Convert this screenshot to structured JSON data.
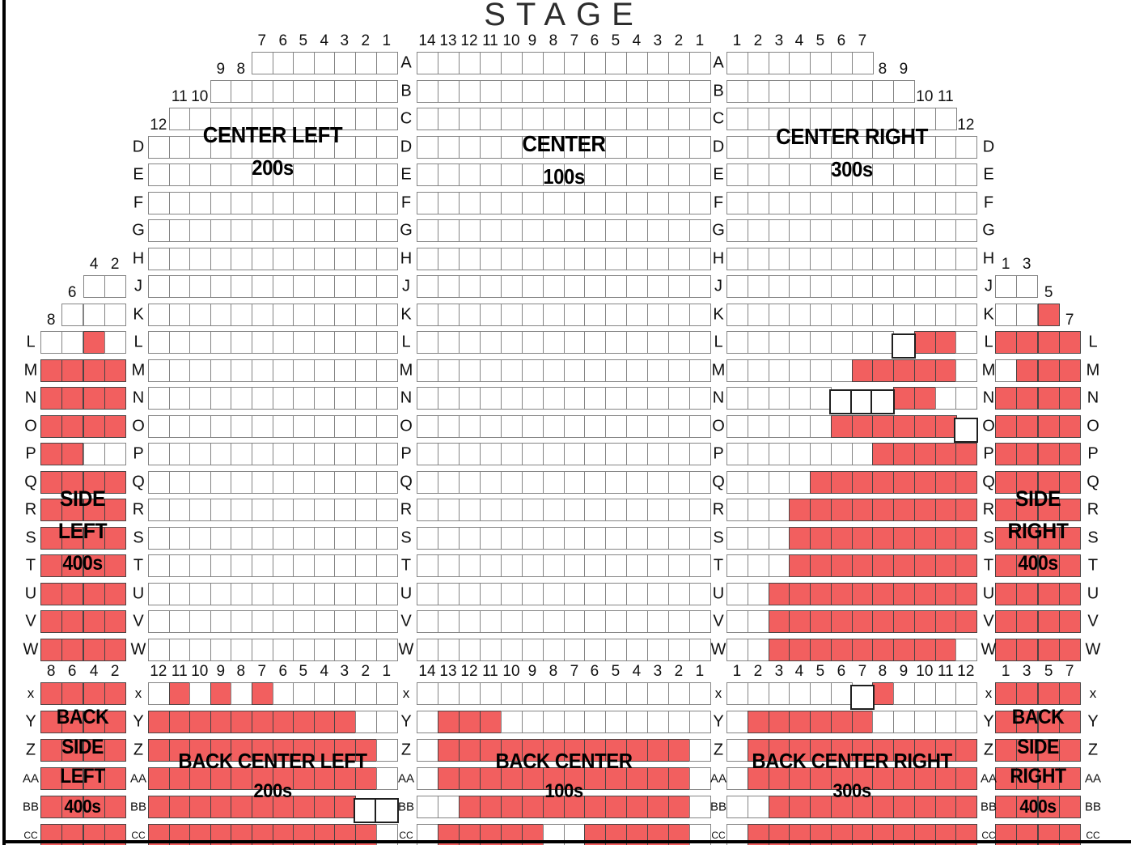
{
  "stage_label": "STAGE",
  "colors": {
    "seat_available": "#FFFFFF",
    "seat_sold": "#F25F5F",
    "seat_border_available": "#848484",
    "seat_border_sold": "#4A4444",
    "border_line": "#000000"
  },
  "label_columns": [
    {
      "id": "col1",
      "top": [
        "L",
        "M",
        "N",
        "O",
        "P",
        "Q",
        "R",
        "S",
        "T",
        "U",
        "V",
        "W"
      ],
      "bottom": [
        "x",
        "Y",
        "Z",
        "AA",
        "BB",
        "CC"
      ]
    },
    {
      "id": "col2",
      "top": [
        "D",
        "E",
        "F",
        "G",
        "H",
        "J",
        "K",
        "L",
        "M",
        "N",
        "O",
        "P",
        "Q",
        "R",
        "S",
        "T",
        "U",
        "V",
        "W"
      ],
      "bottom": [
        "x",
        "Y",
        "Z",
        "AA",
        "BB",
        "CC"
      ]
    },
    {
      "id": "col3",
      "top": [
        "A",
        "B",
        "C",
        "D",
        "E",
        "F",
        "G",
        "H",
        "J",
        "K",
        "L",
        "M",
        "N",
        "O",
        "P",
        "Q",
        "R",
        "S",
        "T",
        "U",
        "V",
        "W"
      ],
      "bottom": [
        "x",
        "Y",
        "Z",
        "AA",
        "BB",
        "CC"
      ]
    },
    {
      "id": "col4",
      "top": [
        "A",
        "B",
        "C",
        "D",
        "E",
        "F",
        "G",
        "H",
        "J",
        "K",
        "L",
        "M",
        "N",
        "O",
        "P",
        "Q",
        "R",
        "S",
        "T",
        "U",
        "V",
        "W"
      ],
      "bottom": [
        "x",
        "Y",
        "Z",
        "AA",
        "BB",
        "CC"
      ]
    },
    {
      "id": "col5",
      "top": [
        "D",
        "E",
        "F",
        "G",
        "H",
        "J",
        "K",
        "L",
        "M",
        "N",
        "O",
        "P",
        "Q",
        "R",
        "S",
        "T",
        "U",
        "V",
        "W"
      ],
      "bottom": [
        "x",
        "Y",
        "Z",
        "AA",
        "BB",
        "CC"
      ]
    },
    {
      "id": "col6",
      "top": [
        "L",
        "M",
        "N",
        "O",
        "P",
        "Q",
        "R",
        "S",
        "T",
        "U",
        "V",
        "W"
      ],
      "bottom": [
        "x",
        "Y",
        "Z",
        "AA",
        "BB",
        "CC"
      ]
    }
  ],
  "sections": [
    {
      "id": "side-left",
      "band": "top",
      "cols": 4,
      "col_numbers": [
        8,
        6,
        4,
        2
      ],
      "label_lines": [
        "SIDE",
        "LEFT",
        "400s"
      ],
      "rows": [
        {
          "r": "J",
          "start": 2,
          "seats": "ww",
          "nums": [
            "4",
            "2"
          ]
        },
        {
          "r": "K",
          "start": 1,
          "seats": "www",
          "nums": [
            "6",
            "",
            ""
          ]
        },
        {
          "r": "L",
          "start": 0,
          "seats": "wwrw",
          "nums": [
            "8",
            "",
            "",
            ""
          ]
        },
        {
          "r": "M",
          "start": 0,
          "seats": "rrrr"
        },
        {
          "r": "N",
          "start": 0,
          "seats": "rrrr"
        },
        {
          "r": "O",
          "start": 0,
          "seats": "rrrr"
        },
        {
          "r": "P",
          "start": 0,
          "seats": "rrww"
        },
        {
          "r": "Q",
          "start": 0,
          "seats": "rrrr"
        },
        {
          "r": "R",
          "start": 0,
          "seats": "rrrr"
        },
        {
          "r": "S",
          "start": 0,
          "seats": "rrrr"
        },
        {
          "r": "T",
          "start": 0,
          "seats": "rrrr"
        },
        {
          "r": "U",
          "start": 0,
          "seats": "rrrr"
        },
        {
          "r": "V",
          "start": 0,
          "seats": "rrrr"
        },
        {
          "r": "W",
          "start": 0,
          "seats": "rrrr"
        }
      ]
    },
    {
      "id": "center-left",
      "band": "top",
      "cols": 12,
      "numbering": "desc",
      "label_lines": [
        "CENTER LEFT",
        "200s"
      ],
      "rows": [
        {
          "r": "A",
          "start": 5,
          "seats": "wwwwwww",
          "nums": [
            "7",
            "6",
            "5",
            "4",
            "3",
            "2",
            "1"
          ]
        },
        {
          "r": "B",
          "start": 3,
          "seats": "wwwwwwwww",
          "nums": [
            "9",
            "8",
            "",
            "",
            "",
            "",
            "",
            "",
            ""
          ]
        },
        {
          "r": "C",
          "start": 1,
          "seats": "wwwwwwwwwww",
          "nums": [
            "11",
            "10",
            "",
            "",
            "",
            "",
            "",
            "",
            "",
            "",
            ""
          ]
        },
        {
          "r": "D",
          "start": 0,
          "seats": "wwwwwwwwwwww",
          "nums": [
            "12",
            "",
            "",
            "",
            "",
            "",
            "",
            "",
            "",
            "",
            "",
            ""
          ]
        },
        {
          "r": "E",
          "start": 0,
          "seats": "wwwwwwwwwwww"
        },
        {
          "r": "F",
          "start": 0,
          "seats": "wwwwwwwwwwww"
        },
        {
          "r": "G",
          "start": 0,
          "seats": "wwwwwwwwwwww"
        },
        {
          "r": "H",
          "start": 0,
          "seats": "wwwwwwwwwwww"
        },
        {
          "r": "J",
          "start": 0,
          "seats": "wwwwwwwwwwww"
        },
        {
          "r": "K",
          "start": 0,
          "seats": "wwwwwwwwwwww"
        },
        {
          "r": "L",
          "start": 0,
          "seats": "wwwwwwwwwwww"
        },
        {
          "r": "M",
          "start": 0,
          "seats": "wwwwwwwwwwww"
        },
        {
          "r": "N",
          "start": 0,
          "seats": "wwwwwwwwwwww"
        },
        {
          "r": "O",
          "start": 0,
          "seats": "wwwwwwwwwwww"
        },
        {
          "r": "P",
          "start": 0,
          "seats": "wwwwwwwwwwww"
        },
        {
          "r": "Q",
          "start": 0,
          "seats": "wwwwwwwwwwww"
        },
        {
          "r": "R",
          "start": 0,
          "seats": "wwwwwwwwwwww"
        },
        {
          "r": "S",
          "start": 0,
          "seats": "wwwwwwwwwwww"
        },
        {
          "r": "T",
          "start": 0,
          "seats": "wwwwwwwwwwww"
        },
        {
          "r": "U",
          "start": 0,
          "seats": "wwwwwwwwwwww"
        },
        {
          "r": "V",
          "start": 0,
          "seats": "wwwwwwwwwwww"
        },
        {
          "r": "W",
          "start": 0,
          "seats": "wwwwwwwwwwww"
        }
      ]
    },
    {
      "id": "center",
      "band": "top",
      "cols": 14,
      "numbering": "desc",
      "label_lines": [
        "CENTER",
        "100s"
      ],
      "rows": [
        {
          "r": "A",
          "start": 0,
          "seats": "wwwwwwwwwwwwww",
          "nums": [
            "14",
            "13",
            "12",
            "11",
            "10",
            "9",
            "8",
            "7",
            "6",
            "5",
            "4",
            "3",
            "2",
            "1"
          ]
        },
        {
          "r": "B",
          "start": 0,
          "seats": "wwwwwwwwwwwwww"
        },
        {
          "r": "C",
          "start": 0,
          "seats": "wwwwwwwwwwwwww"
        },
        {
          "r": "D",
          "start": 0,
          "seats": "wwwwwwwwwwwwww"
        },
        {
          "r": "E",
          "start": 0,
          "seats": "wwwwwwwwwwwwww"
        },
        {
          "r": "F",
          "start": 0,
          "seats": "wwwwwwwwwwwwww"
        },
        {
          "r": "G",
          "start": 0,
          "seats": "wwwwwwwwwwwwww"
        },
        {
          "r": "H",
          "start": 0,
          "seats": "wwwwwwwwwwwwww"
        },
        {
          "r": "J",
          "start": 0,
          "seats": "wwwwwwwwwwwwww"
        },
        {
          "r": "K",
          "start": 0,
          "seats": "wwwwwwwwwwwwww"
        },
        {
          "r": "L",
          "start": 0,
          "seats": "wwwwwwwwwwwwww"
        },
        {
          "r": "M",
          "start": 0,
          "seats": "wwwwwwwwwwwwww"
        },
        {
          "r": "N",
          "start": 0,
          "seats": "wwwwwwwwwwwwww"
        },
        {
          "r": "O",
          "start": 0,
          "seats": "wwwwwwwwwwwwww"
        },
        {
          "r": "P",
          "start": 0,
          "seats": "wwwwwwwwwwwwww"
        },
        {
          "r": "Q",
          "start": 0,
          "seats": "wwwwwwwwwwwwww"
        },
        {
          "r": "R",
          "start": 0,
          "seats": "wwwwwwwwwwwwww"
        },
        {
          "r": "S",
          "start": 0,
          "seats": "wwwwwwwwwwwwww"
        },
        {
          "r": "T",
          "start": 0,
          "seats": "wwwwwwwwwwwwww"
        },
        {
          "r": "U",
          "start": 0,
          "seats": "wwwwwwwwwwwwww"
        },
        {
          "r": "V",
          "start": 0,
          "seats": "wwwwwwwwwwwwww"
        },
        {
          "r": "W",
          "start": 0,
          "seats": "wwwwwwwwwwwwww"
        }
      ]
    },
    {
      "id": "center-right",
      "band": "top",
      "cols": 12,
      "numbering": "asc",
      "label_lines": [
        "CENTER RIGHT",
        "300s"
      ],
      "rows": [
        {
          "r": "A",
          "start": 0,
          "seats": "wwwwwww",
          "nums": [
            "1",
            "2",
            "3",
            "4",
            "5",
            "6",
            "7"
          ]
        },
        {
          "r": "B",
          "start": 0,
          "seats": "wwwwwwwww",
          "nums": [
            "",
            "",
            "",
            "",
            "",
            "",
            "",
            "8",
            "9"
          ]
        },
        {
          "r": "C",
          "start": 0,
          "seats": "wwwwwwwwwww",
          "nums": [
            "",
            "",
            "",
            "",
            "",
            "",
            "",
            "",
            "",
            "10",
            "11"
          ]
        },
        {
          "r": "D",
          "start": 0,
          "seats": "wwwwwwwwwwww",
          "nums": [
            "",
            "",
            "",
            "",
            "",
            "",
            "",
            "",
            "",
            "",
            "",
            "12"
          ]
        },
        {
          "r": "E",
          "start": 0,
          "seats": "wwwwwwwwwwww"
        },
        {
          "r": "F",
          "start": 0,
          "seats": "wwwwwwwwwwww"
        },
        {
          "r": "G",
          "start": 0,
          "seats": "wwwwwwwwwwww"
        },
        {
          "r": "H",
          "start": 0,
          "seats": "wwwwwwwwwwww"
        },
        {
          "r": "J",
          "start": 0,
          "seats": "wwwwwwwwwwww"
        },
        {
          "r": "K",
          "start": 0,
          "seats": "wwwwwwwwwwww"
        },
        {
          "r": "L",
          "start": 0,
          "seats": "wwwwwwwworrw"
        },
        {
          "r": "M",
          "start": 0,
          "seats": "wwwwwwrrrrrw"
        },
        {
          "r": "N",
          "start": 0,
          "seats": "wwwwwooorrww"
        },
        {
          "r": "O",
          "start": 0,
          "seats": "wwwwwrrrrrro"
        },
        {
          "r": "P",
          "start": 0,
          "seats": "wwwwwwwrrrrr"
        },
        {
          "r": "Q",
          "start": 0,
          "seats": "wwwwrrrrrrrr"
        },
        {
          "r": "R",
          "start": 0,
          "seats": "wwwrrrrrrrrr"
        },
        {
          "r": "S",
          "start": 0,
          "seats": "wwwrrrrrrrrr"
        },
        {
          "r": "T",
          "start": 0,
          "seats": "wwwrrrrrrrrr"
        },
        {
          "r": "U",
          "start": 0,
          "seats": "wwrrrrrrrrrr"
        },
        {
          "r": "V",
          "start": 0,
          "seats": "wwrrrrrrrrrr"
        },
        {
          "r": "W",
          "start": 0,
          "seats": "wwrrrrrrrrrw"
        }
      ]
    },
    {
      "id": "side-right",
      "band": "top",
      "cols": 4,
      "col_numbers": [
        1,
        3,
        5,
        7
      ],
      "label_lines": [
        "SIDE",
        "RIGHT",
        "400s"
      ],
      "rows": [
        {
          "r": "J",
          "start": 0,
          "seats": "ww",
          "nums": [
            "1",
            "3"
          ]
        },
        {
          "r": "K",
          "start": 0,
          "seats": "wwr",
          "nums": [
            "",
            "",
            "5"
          ]
        },
        {
          "r": "L",
          "start": 0,
          "seats": "rrrr",
          "nums": [
            "",
            "",
            "",
            "7"
          ]
        },
        {
          "r": "M",
          "start": 0,
          "seats": "wrrr"
        },
        {
          "r": "N",
          "start": 0,
          "seats": "rrrr"
        },
        {
          "r": "O",
          "start": 0,
          "seats": "rrrr"
        },
        {
          "r": "P",
          "start": 0,
          "seats": "rrrr"
        },
        {
          "r": "Q",
          "start": 0,
          "seats": "rrrr"
        },
        {
          "r": "R",
          "start": 0,
          "seats": "rrrr"
        },
        {
          "r": "S",
          "start": 0,
          "seats": "rrrr"
        },
        {
          "r": "T",
          "start": 0,
          "seats": "rrrr"
        },
        {
          "r": "U",
          "start": 0,
          "seats": "rrrr"
        },
        {
          "r": "V",
          "start": 0,
          "seats": "rrrr"
        },
        {
          "r": "W",
          "start": 0,
          "seats": "rrrr"
        }
      ]
    },
    {
      "id": "back-side-left",
      "band": "bottom",
      "cols": 4,
      "col_numbers": [
        8,
        6,
        4,
        2
      ],
      "label_lines": [
        "BACK",
        "SIDE",
        "LEFT",
        "400s"
      ],
      "rows": [
        {
          "r": "X",
          "start": 0,
          "seats": "rrrr",
          "nums": [
            "8",
            "6",
            "4",
            "2"
          ]
        },
        {
          "r": "Y",
          "start": 0,
          "seats": "rrrr"
        },
        {
          "r": "Z",
          "start": 0,
          "seats": "rrrr"
        },
        {
          "r": "AA",
          "start": 0,
          "seats": "rrrr"
        },
        {
          "r": "BB",
          "start": 0,
          "seats": "rrrr"
        },
        {
          "r": "CC",
          "start": 0,
          "seats": "rrrr"
        }
      ]
    },
    {
      "id": "back-center-left",
      "band": "bottom",
      "cols": 12,
      "numbering": "desc",
      "label_lines": [
        "BACK CENTER LEFT",
        "200s"
      ],
      "rows": [
        {
          "r": "X",
          "start": 0,
          "seats": "wrwrwrwwwwww",
          "nums": [
            "12",
            "11",
            "10",
            "9",
            "8",
            "7",
            "6",
            "5",
            "4",
            "3",
            "2",
            "1"
          ]
        },
        {
          "r": "Y",
          "start": 0,
          "seats": "rrrrrrrrrrww"
        },
        {
          "r": "Z",
          "start": 0,
          "seats": "rrrrrrrrrrrw"
        },
        {
          "r": "AA",
          "start": 0,
          "seats": "rrrrrrrrrrrw"
        },
        {
          "r": "BB",
          "start": 0,
          "seats": "rrrrrrrrrroo"
        },
        {
          "r": "CC",
          "start": 0,
          "seats": "rrrrrrrrrrrw"
        }
      ]
    },
    {
      "id": "back-center",
      "band": "bottom",
      "cols": 14,
      "numbering": "desc",
      "label_lines": [
        "BACK CENTER",
        "100s"
      ],
      "rows": [
        {
          "r": "X",
          "start": 0,
          "seats": "wwwwwwwwwwwwww",
          "nums": [
            "14",
            "13",
            "12",
            "11",
            "10",
            "9",
            "8",
            "7",
            "6",
            "5",
            "4",
            "3",
            "2",
            "1"
          ]
        },
        {
          "r": "Y",
          "start": 0,
          "seats": "wrrrwwwwwwwwww"
        },
        {
          "r": "Z",
          "start": 0,
          "seats": "wrrrrrrrrrrrrw"
        },
        {
          "r": "AA",
          "start": 0,
          "seats": "wrrrrrrrrrrrrw"
        },
        {
          "r": "BB",
          "start": 0,
          "seats": "wwrrrrrrrrrrrw"
        },
        {
          "r": "CC",
          "start": 0,
          "seats": "wrrrrrwwrrrrrw"
        }
      ]
    },
    {
      "id": "back-center-right",
      "band": "bottom",
      "cols": 12,
      "numbering": "asc",
      "label_lines": [
        "BACK CENTER RIGHT",
        "300s"
      ],
      "rows": [
        {
          "r": "X",
          "start": 0,
          "seats": "wwwwwworwwww",
          "nums": [
            "1",
            "2",
            "3",
            "4",
            "5",
            "6",
            "7",
            "8",
            "9",
            "10",
            "11",
            "12"
          ]
        },
        {
          "r": "Y",
          "start": 0,
          "seats": "wrrrrrrwwwww"
        },
        {
          "r": "Z",
          "start": 0,
          "seats": "wrrrrrrrrrrr"
        },
        {
          "r": "AA",
          "start": 0,
          "seats": "wrrrrrrrrrrr"
        },
        {
          "r": "BB",
          "start": 0,
          "seats": "wwrrrrrrrrrr"
        },
        {
          "r": "CC",
          "start": 0,
          "seats": "wrrrrrrrrrrr"
        }
      ]
    },
    {
      "id": "back-side-right",
      "band": "bottom",
      "cols": 4,
      "col_numbers": [
        1,
        3,
        5,
        7
      ],
      "label_lines": [
        "BACK",
        "SIDE",
        "RIGHT",
        "400s"
      ],
      "rows": [
        {
          "r": "X",
          "start": 0,
          "seats": "rrrr",
          "nums": [
            "1",
            "3",
            "5",
            "7"
          ]
        },
        {
          "r": "Y",
          "start": 0,
          "seats": "rrrr"
        },
        {
          "r": "Z",
          "start": 0,
          "seats": "rrrr"
        },
        {
          "r": "AA",
          "start": 0,
          "seats": "rrrr"
        },
        {
          "r": "BB",
          "start": 0,
          "seats": "rrrr"
        },
        {
          "r": "CC",
          "start": 0,
          "seats": "rrrr"
        }
      ]
    }
  ]
}
